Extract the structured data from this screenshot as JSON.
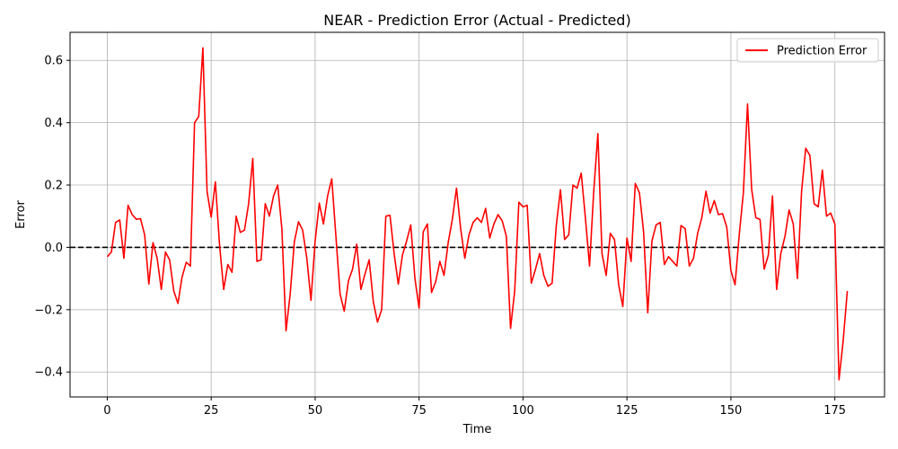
{
  "chart_data": {
    "type": "line",
    "title": "NEAR - Prediction Error (Actual - Predicted)",
    "xlabel": "Time",
    "ylabel": "Error",
    "xlim": [
      -8.95,
      186.95
    ],
    "ylim": [
      -0.48,
      0.69
    ],
    "xticks": [
      0,
      25,
      50,
      75,
      100,
      125,
      150,
      175
    ],
    "yticks": [
      -0.4,
      -0.2,
      0.0,
      0.2,
      0.4,
      0.6
    ],
    "ytick_labels": [
      "−0.4",
      "−0.2",
      "0.0",
      "0.2",
      "0.4",
      "0.6"
    ],
    "grid": true,
    "legend_position": "top-right",
    "reference_line": {
      "y": 0,
      "style": "dashed",
      "color": "#000000"
    },
    "series": [
      {
        "name": "Prediction Error",
        "color": "#ff0000",
        "values": [
          -0.03,
          -0.015,
          0.08,
          0.088,
          -0.035,
          0.135,
          0.105,
          0.09,
          0.092,
          0.04,
          -0.118,
          0.015,
          -0.035,
          -0.135,
          -0.015,
          -0.04,
          -0.14,
          -0.18,
          -0.095,
          -0.048,
          -0.06,
          0.4,
          0.42,
          0.64,
          0.18,
          0.097,
          0.21,
          0.01,
          -0.135,
          -0.055,
          -0.08,
          0.1,
          0.048,
          0.055,
          0.14,
          0.285,
          -0.045,
          -0.04,
          0.14,
          0.1,
          0.165,
          0.2,
          0.06,
          -0.268,
          -0.15,
          0.018,
          0.082,
          0.055,
          -0.035,
          -0.17,
          0.02,
          0.142,
          0.075,
          0.165,
          0.22,
          0.035,
          -0.15,
          -0.205,
          -0.108,
          -0.07,
          0.01,
          -0.135,
          -0.085,
          -0.04,
          -0.175,
          -0.24,
          -0.2,
          0.1,
          0.103,
          -0.02,
          -0.118,
          -0.025,
          0.02,
          0.072,
          -0.1,
          -0.195,
          0.05,
          0.075,
          -0.145,
          -0.11,
          -0.045,
          -0.09,
          0.015,
          0.09,
          0.19,
          0.06,
          -0.035,
          0.04,
          0.08,
          0.095,
          0.08,
          0.125,
          0.03,
          0.075,
          0.105,
          0.085,
          0.035,
          -0.26,
          -0.14,
          0.145,
          0.13,
          0.135,
          -0.115,
          -0.07,
          -0.02,
          -0.09,
          -0.125,
          -0.115,
          0.07,
          0.185,
          0.025,
          0.04,
          0.2,
          0.19,
          0.238,
          0.095,
          -0.06,
          0.178,
          0.365,
          -0.02,
          -0.09,
          0.045,
          0.025,
          -0.12,
          -0.19,
          0.03,
          -0.045,
          0.205,
          0.175,
          0.05,
          -0.21,
          0.02,
          0.072,
          0.08,
          -0.055,
          -0.03,
          -0.045,
          -0.06,
          0.07,
          0.06,
          -0.06,
          -0.035,
          0.045,
          0.095,
          0.18,
          0.11,
          0.15,
          0.105,
          0.108,
          0.065,
          -0.075,
          -0.12,
          0.04,
          0.175,
          0.46,
          0.185,
          0.095,
          0.09,
          -0.07,
          -0.025,
          0.165,
          -0.135,
          -0.02,
          0.035,
          0.12,
          0.075,
          -0.1,
          0.18,
          0.318,
          0.295,
          0.14,
          0.13,
          0.248,
          0.1,
          0.11,
          0.075,
          -0.425,
          -0.3,
          -0.14
        ]
      }
    ]
  }
}
